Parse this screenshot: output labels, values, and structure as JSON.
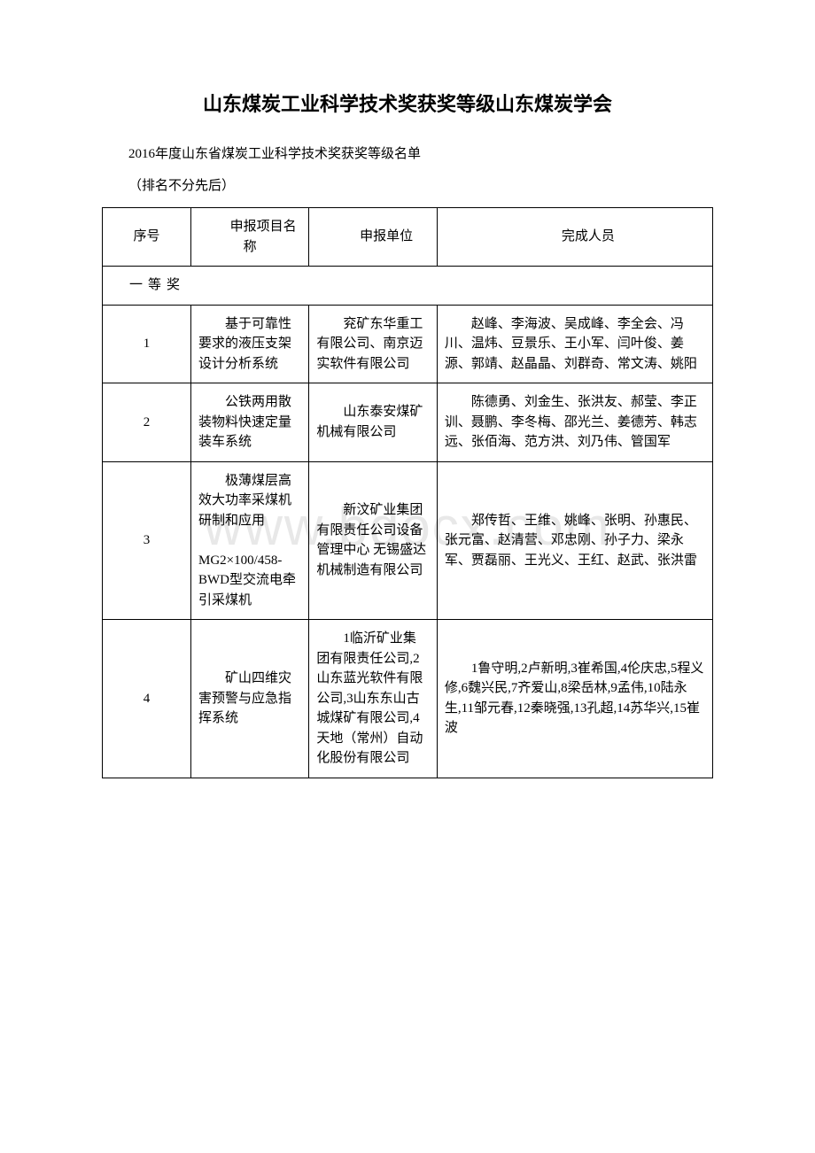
{
  "title": "山东煤炭工业科学技术奖获奖等级山东煤炭学会",
  "subtitle": "2016年度山东省煤炭工业科学技术奖获奖等级名单",
  "note": "（排名不分先后）",
  "watermark": "www.bdocx.com",
  "table": {
    "headers": {
      "num": "序号",
      "project": "申报项目名称",
      "unit": "申报单位",
      "people": "完成人员"
    },
    "section_title": "一等奖",
    "rows": [
      {
        "num": "1",
        "project": "基于可靠性要求的液压支架设计分析系统",
        "unit": "兖矿东华重工有限公司、南京迈实软件有限公司",
        "people": "赵峰、李海波、吴成峰、李全会、冯川、温炜、豆景乐、王小军、闫叶俊、姜源、郭靖、赵晶晶、刘群奇、常文涛、姚阳"
      },
      {
        "num": "2",
        "project": "公铁两用散装物料快速定量装车系统",
        "unit": "山东泰安煤矿机械有限公司",
        "people": "陈德勇、刘金生、张洪友、郝莹、李正训、聂鹏、李冬梅、邵光兰、姜德芳、韩志远、张佰海、范方洪、刘乃伟、管国军"
      },
      {
        "num": "3",
        "project": "极薄煤层高效大功率采煤机研制和应用\n\nMG2×100/458-BWD型交流电牵引采煤机",
        "unit": "新汶矿业集团有限责任公司设备管理中心 无锡盛达机械制造有限公司",
        "people": "郑传哲、王维、姚峰、张明、孙惠民、张元富、赵清营、邓忠刚、孙子力、梁永军、贾磊丽、王光义、王红、赵武、张洪雷"
      },
      {
        "num": "4",
        "project": "矿山四维灾害预警与应急指挥系统",
        "unit": "1临沂矿业集团有限责任公司,2山东蓝光软件有限公司,3山东东山古城煤矿有限公司,4天地（常州）自动化股份有限公司",
        "people": "1鲁守明,2卢新明,3崔希国,4伦庆忠,5程义修,6魏兴民,7齐爱山,8梁岳林,9孟伟,10陆永生,11邹元春,12秦晓强,13孔超,14苏华兴,15崔波"
      }
    ]
  }
}
